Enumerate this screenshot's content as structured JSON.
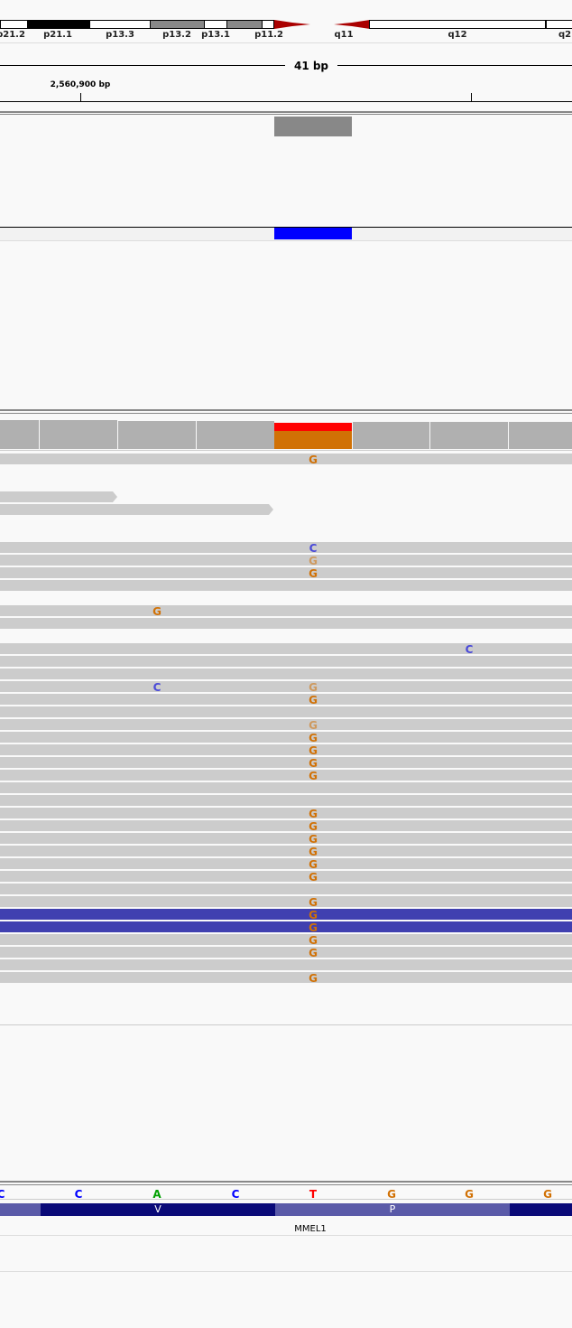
{
  "ideogram": {
    "bands": [
      {
        "label": "p21.2",
        "fill": "#ffffff"
      },
      {
        "label": "p21.1",
        "fill": "#000000"
      },
      {
        "label": "p13.3",
        "fill": "#ffffff"
      },
      {
        "label": "p13.2",
        "fill": "#888888"
      },
      {
        "label": "p13.1",
        "fill": "#ffffff"
      },
      {
        "label": "p11.2",
        "fill": "#888888"
      },
      {
        "label": "q11",
        "fill": "#ffffff"
      },
      {
        "label": "q12",
        "fill": "#ffffff"
      },
      {
        "label": "q2",
        "fill": "#ffffff"
      }
    ],
    "centromere_color": "#aa0000"
  },
  "ruler": {
    "span_label": "41 bp",
    "position_label": "2,560,900 bp"
  },
  "colors": {
    "A": "#00a000",
    "C": "#0000ff",
    "G": "#d17105",
    "T": "#ff0000",
    "read": "#cccccc",
    "read_reverse": "#4040b0",
    "feature": "#0000ff",
    "coverage": "#b0b0b0",
    "codon_dark": "#0a0a78",
    "codon_light": "#5a5aa8"
  },
  "alignment": {
    "rows": [
      {
        "mismatches": [
          {
            "base": "G",
            "col": 4
          }
        ]
      },
      {
        "mismatches": []
      },
      {
        "mismatches": []
      },
      {
        "mismatches": []
      },
      {
        "mismatches": []
      },
      {
        "mismatches": []
      },
      {
        "mismatches": []
      },
      {
        "mismatches": [
          {
            "base": "C",
            "col": 4
          }
        ]
      },
      {
        "mismatches": [
          {
            "base": "G",
            "col": 4,
            "faint": true
          }
        ]
      },
      {
        "mismatches": [
          {
            "base": "G",
            "col": 4
          }
        ]
      },
      {
        "mismatches": []
      },
      {
        "mismatches": []
      },
      {
        "mismatches": [
          {
            "base": "G",
            "col": 2
          }
        ]
      },
      {
        "mismatches": []
      },
      {
        "mismatches": []
      },
      {
        "mismatches": [
          {
            "base": "C",
            "col": 6
          }
        ]
      },
      {
        "mismatches": []
      },
      {
        "mismatches": []
      },
      {
        "mismatches": [
          {
            "base": "C",
            "col": 2
          },
          {
            "base": "G",
            "col": 4,
            "faint": true
          }
        ]
      },
      {
        "mismatches": [
          {
            "base": "G",
            "col": 4
          }
        ]
      },
      {
        "mismatches": []
      },
      {
        "mismatches": [
          {
            "base": "G",
            "col": 4,
            "faint": true
          }
        ]
      },
      {
        "mismatches": [
          {
            "base": "G",
            "col": 4
          }
        ]
      },
      {
        "mismatches": [
          {
            "base": "G",
            "col": 4
          }
        ]
      },
      {
        "mismatches": [
          {
            "base": "G",
            "col": 4
          }
        ]
      },
      {
        "mismatches": [
          {
            "base": "G",
            "col": 4
          }
        ]
      },
      {
        "mismatches": []
      },
      {
        "mismatches": []
      },
      {
        "mismatches": [
          {
            "base": "G",
            "col": 4
          }
        ]
      },
      {
        "mismatches": [
          {
            "base": "G",
            "col": 4
          }
        ]
      },
      {
        "mismatches": [
          {
            "base": "G",
            "col": 4
          }
        ]
      },
      {
        "mismatches": [
          {
            "base": "G",
            "col": 4
          }
        ]
      },
      {
        "mismatches": [
          {
            "base": "G",
            "col": 4
          }
        ]
      },
      {
        "mismatches": [
          {
            "base": "G",
            "col": 4
          }
        ]
      },
      {
        "mismatches": []
      },
      {
        "mismatches": [
          {
            "base": "G",
            "col": 4
          }
        ]
      },
      {
        "mismatches": [
          {
            "base": "G",
            "col": 4
          }
        ]
      },
      {
        "mismatches": [
          {
            "base": "G",
            "col": 4
          }
        ]
      },
      {
        "mismatches": [
          {
            "base": "G",
            "col": 4
          }
        ]
      },
      {
        "mismatches": [
          {
            "base": "G",
            "col": 4
          }
        ]
      },
      {
        "mismatches": []
      },
      {
        "mismatches": [
          {
            "base": "G",
            "col": 4
          }
        ]
      }
    ]
  },
  "sequence": [
    "C",
    "C",
    "A",
    "C",
    "T",
    "G",
    "G",
    "G"
  ],
  "translation": [
    {
      "aa": "",
      "shade": "light"
    },
    {
      "aa": "V",
      "shade": "dark"
    },
    {
      "aa": "P",
      "shade": "light"
    },
    {
      "aa": "",
      "shade": "dark"
    }
  ],
  "gene": {
    "name": "MMEL1"
  }
}
